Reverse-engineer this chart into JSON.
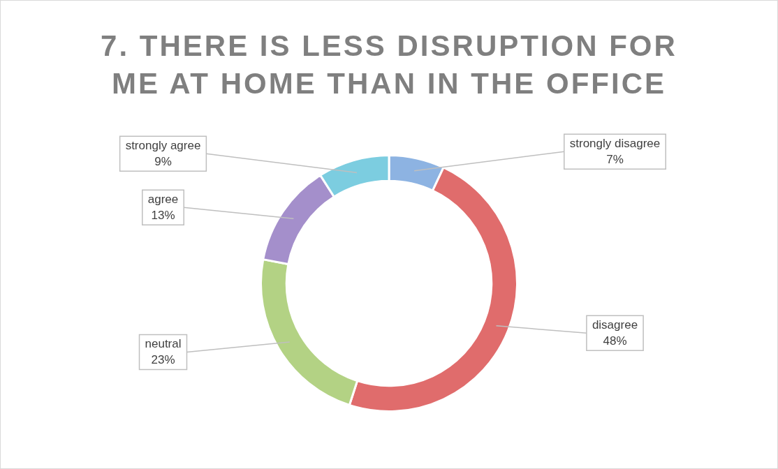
{
  "chart_data": {
    "type": "donut",
    "title": "7. THERE IS LESS DISRUPTION FOR ME AT HOME THAN IN THE OFFICE",
    "categories": [
      "strongly disagree",
      "disagree",
      "neutral",
      "agree",
      "strongly agree"
    ],
    "values": [
      7,
      48,
      23,
      13,
      9
    ],
    "value_labels": [
      "7%",
      "48%",
      "23%",
      "13%",
      "9%"
    ],
    "colors": [
      "#8db3e2",
      "#e06c6c",
      "#b3d284",
      "#a48fcb",
      "#7ccde0"
    ],
    "legend": false
  }
}
